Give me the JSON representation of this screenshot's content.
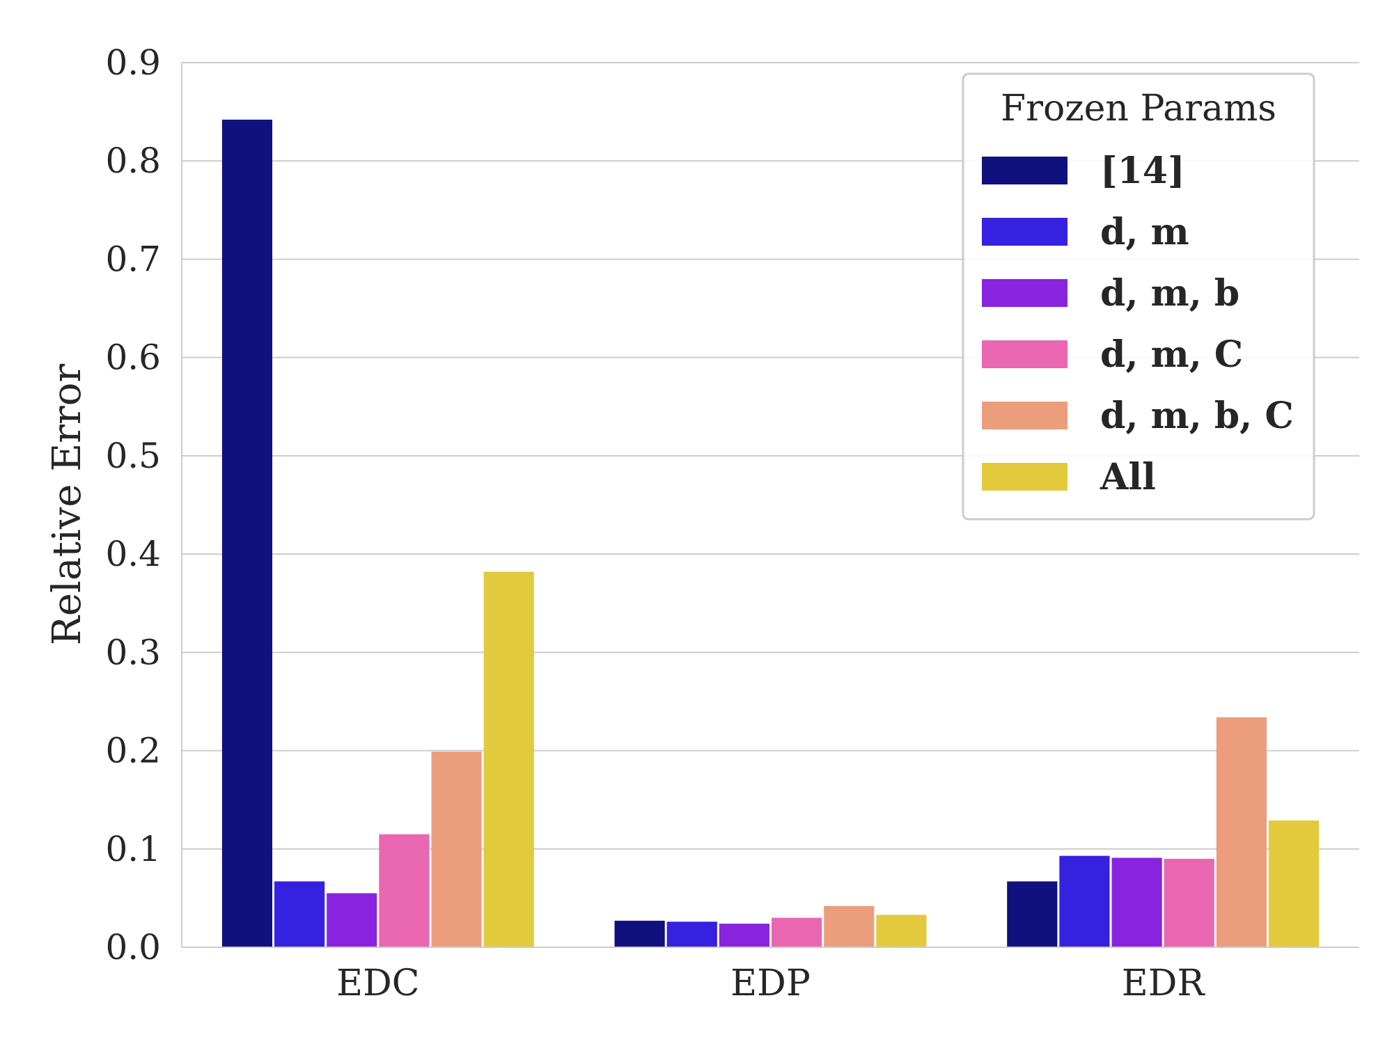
{
  "chart_data": {
    "type": "bar",
    "categories": [
      "EDC",
      "EDP",
      "EDR"
    ],
    "ylabel": "Relative Error",
    "xlabel": "",
    "ylim": [
      0,
      0.9
    ],
    "yticks": [
      "0.0",
      "0.1",
      "0.2",
      "0.3",
      "0.4",
      "0.5",
      "0.6",
      "0.7",
      "0.8",
      "0.9"
    ],
    "grid": "horizontal",
    "legend": {
      "title": "Frozen Params",
      "placement": "top-right"
    },
    "series": [
      {
        "name": "[14]",
        "color": "#10107e",
        "values": [
          0.842,
          0.027,
          0.067
        ]
      },
      {
        "name": "d, m",
        "color": "#3621e0",
        "values": [
          0.067,
          0.026,
          0.093
        ]
      },
      {
        "name": "d, m, b",
        "color": "#8824e0",
        "values": [
          0.055,
          0.024,
          0.091
        ]
      },
      {
        "name": "d, m, C",
        "color": "#e967b0",
        "values": [
          0.115,
          0.03,
          0.09
        ]
      },
      {
        "name": "d, m, b, C",
        "color": "#ec9e7c",
        "values": [
          0.199,
          0.042,
          0.234
        ]
      },
      {
        "name": "All",
        "color": "#e2ca3c",
        "values": [
          0.382,
          0.033,
          0.129
        ]
      }
    ]
  }
}
